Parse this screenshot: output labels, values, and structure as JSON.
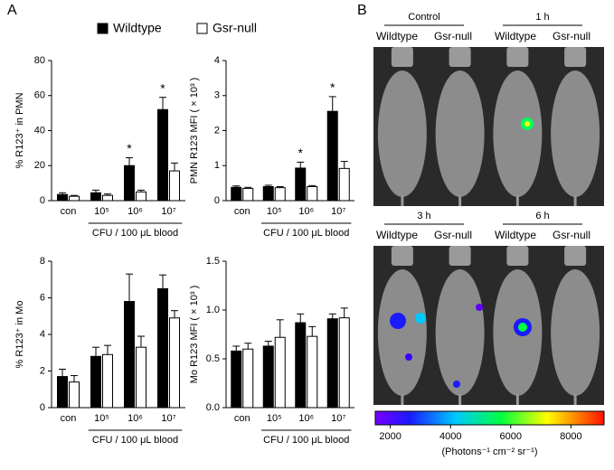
{
  "panel_labels": [
    "A",
    "B"
  ],
  "chart_data": [
    {
      "type": "bar",
      "y_label": "% R123⁺ in PMN",
      "x_label": "CFU / 100 μL blood",
      "categories": [
        "con",
        "10⁵",
        "10⁶",
        "10⁷"
      ],
      "ylim": [
        0,
        80
      ],
      "yticks": [
        0,
        20,
        40,
        60,
        80
      ],
      "series": [
        {
          "name": "Wildtype",
          "color": "#000000",
          "values": [
            3.5,
            4.5,
            20,
            52
          ],
          "errors": [
            1,
            1.5,
            4.5,
            7
          ],
          "significance": [
            null,
            null,
            "*",
            "*"
          ]
        },
        {
          "name": "Gsr-null",
          "color": "#ffffff",
          "values": [
            2.5,
            3,
            5,
            17
          ],
          "errors": [
            0.5,
            0.8,
            1,
            4.5
          ]
        }
      ]
    },
    {
      "type": "bar",
      "y_label": "PMN R123 MFI ( × 10³ )",
      "x_label": "CFU / 100 μL blood",
      "categories": [
        "con",
        "10⁵",
        "10⁶",
        "10⁷"
      ],
      "ylim": [
        0,
        4
      ],
      "yticks": [
        0,
        1,
        2,
        3,
        4
      ],
      "series": [
        {
          "color": "#000000",
          "values": [
            0.38,
            0.4,
            0.93,
            2.55
          ],
          "errors": [
            0.04,
            0.04,
            0.17,
            0.42
          ],
          "significance": [
            null,
            null,
            "*",
            "*"
          ]
        },
        {
          "color": "#ffffff",
          "values": [
            0.35,
            0.37,
            0.4,
            0.92
          ],
          "errors": [
            0.03,
            0.03,
            0.03,
            0.2
          ]
        }
      ]
    },
    {
      "type": "bar",
      "y_label": "% R123⁺ in Mo",
      "x_label": "CFU / 100 μL blood",
      "categories": [
        "con",
        "10⁵",
        "10⁶",
        "10⁷"
      ],
      "ylim": [
        0,
        8
      ],
      "yticks": [
        0,
        2,
        4,
        6,
        8
      ],
      "series": [
        {
          "color": "#000000",
          "values": [
            1.7,
            2.8,
            5.8,
            6.5
          ],
          "errors": [
            0.4,
            0.5,
            1.5,
            0.75
          ]
        },
        {
          "color": "#ffffff",
          "values": [
            1.4,
            2.9,
            3.3,
            4.9
          ],
          "errors": [
            0.35,
            0.5,
            0.6,
            0.4
          ]
        }
      ]
    },
    {
      "type": "bar",
      "y_label": "Mo R123 MFI ( × 10³ )",
      "x_label": "CFU / 100 μL blood",
      "categories": [
        "con",
        "10⁵",
        "10⁶",
        "10⁷"
      ],
      "ylim": [
        0,
        1.5
      ],
      "yticks": [
        {
          "value": 0,
          "label": "0.0"
        },
        0.5,
        {
          "value": 1,
          "label": "1.0"
        },
        1.5
      ],
      "series": [
        {
          "color": "#000000",
          "values": [
            0.58,
            0.63,
            0.87,
            0.91
          ],
          "errors": [
            0.05,
            0.05,
            0.09,
            0.05
          ]
        },
        {
          "color": "#ffffff",
          "values": [
            0.6,
            0.72,
            0.73,
            0.92
          ],
          "errors": [
            0.06,
            0.18,
            0.1,
            0.1
          ]
        }
      ]
    }
  ],
  "imaging": {
    "groups": [
      {
        "title": "Control",
        "labels": [
          "Wildtype",
          "Gsr-null"
        ]
      },
      {
        "title": "1 h",
        "labels": [
          "Wildtype",
          "Gsr-null"
        ]
      },
      {
        "title": "3 h",
        "labels": [
          "Wildtype",
          "Gsr-null"
        ]
      },
      {
        "title": "6 h",
        "labels": [
          "Wildtype",
          "Gsr-null"
        ]
      }
    ]
  },
  "colorbar": {
    "lim": [
      1500,
      9100
    ],
    "ticks": [
      2000,
      4000,
      6000,
      8000
    ],
    "label": "(Photons⁻¹ cm⁻² sr⁻¹)"
  }
}
